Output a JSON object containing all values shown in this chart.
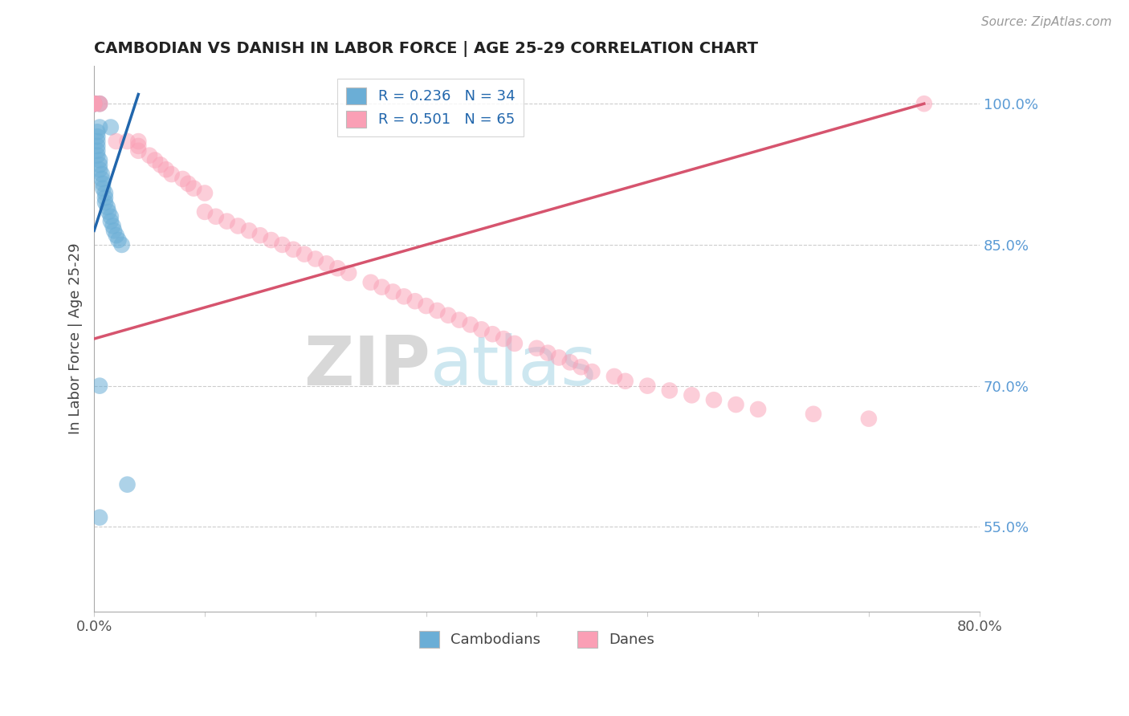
{
  "title": "CAMBODIAN VS DANISH IN LABOR FORCE | AGE 25-29 CORRELATION CHART",
  "source": "Source: ZipAtlas.com",
  "ylabel": "In Labor Force | Age 25-29",
  "legend_label1": "R = 0.236   N = 34",
  "legend_label2": "R = 0.501   N = 65",
  "legend_label_cambodians": "Cambodians",
  "legend_label_danes": "Danes",
  "xlim": [
    0.0,
    0.8
  ],
  "ylim": [
    0.46,
    1.04
  ],
  "color_blue": "#6baed6",
  "color_pink": "#fa9fb5",
  "color_blue_line": "#2166ac",
  "color_pink_line": "#d6546e",
  "watermark_zip": "ZIP",
  "watermark_atlas": "atlas",
  "cam_x": [
    0.0,
    0.0,
    0.0,
    0.005,
    0.005,
    0.015,
    0.003,
    0.003,
    0.003,
    0.003,
    0.003,
    0.003,
    0.005,
    0.005,
    0.005,
    0.007,
    0.007,
    0.008,
    0.008,
    0.01,
    0.01,
    0.01,
    0.012,
    0.013,
    0.015,
    0.015,
    0.017,
    0.018,
    0.02,
    0.022,
    0.025,
    0.005,
    0.03,
    0.005
  ],
  "cam_y": [
    1.0,
    1.0,
    1.0,
    1.0,
    0.975,
    0.975,
    0.97,
    0.965,
    0.96,
    0.955,
    0.95,
    0.945,
    0.94,
    0.935,
    0.93,
    0.925,
    0.92,
    0.915,
    0.91,
    0.905,
    0.9,
    0.895,
    0.89,
    0.885,
    0.88,
    0.875,
    0.87,
    0.865,
    0.86,
    0.855,
    0.85,
    0.7,
    0.595,
    0.56
  ],
  "dan_x": [
    0.0,
    0.0,
    0.0,
    0.0,
    0.005,
    0.005,
    0.02,
    0.03,
    0.04,
    0.04,
    0.04,
    0.05,
    0.055,
    0.06,
    0.065,
    0.07,
    0.08,
    0.085,
    0.09,
    0.1,
    0.1,
    0.11,
    0.12,
    0.13,
    0.14,
    0.15,
    0.16,
    0.17,
    0.18,
    0.19,
    0.2,
    0.21,
    0.22,
    0.23,
    0.25,
    0.26,
    0.27,
    0.28,
    0.29,
    0.3,
    0.31,
    0.32,
    0.33,
    0.34,
    0.35,
    0.36,
    0.37,
    0.38,
    0.4,
    0.41,
    0.42,
    0.43,
    0.44,
    0.45,
    0.47,
    0.48,
    0.5,
    0.52,
    0.54,
    0.56,
    0.58,
    0.6,
    0.65,
    0.7,
    0.75
  ],
  "dan_y": [
    1.0,
    1.0,
    1.0,
    1.0,
    1.0,
    1.0,
    0.96,
    0.96,
    0.96,
    0.955,
    0.95,
    0.945,
    0.94,
    0.935,
    0.93,
    0.925,
    0.92,
    0.915,
    0.91,
    0.905,
    0.885,
    0.88,
    0.875,
    0.87,
    0.865,
    0.86,
    0.855,
    0.85,
    0.845,
    0.84,
    0.835,
    0.83,
    0.825,
    0.82,
    0.81,
    0.805,
    0.8,
    0.795,
    0.79,
    0.785,
    0.78,
    0.775,
    0.77,
    0.765,
    0.76,
    0.755,
    0.75,
    0.745,
    0.74,
    0.735,
    0.73,
    0.725,
    0.72,
    0.715,
    0.71,
    0.705,
    0.7,
    0.695,
    0.69,
    0.685,
    0.68,
    0.675,
    0.67,
    0.665,
    1.0
  ],
  "blue_line_x": [
    0.0,
    0.04
  ],
  "blue_line_y": [
    0.865,
    1.01
  ],
  "pink_line_x": [
    0.0,
    0.75
  ],
  "pink_line_y": [
    0.75,
    1.0
  ]
}
